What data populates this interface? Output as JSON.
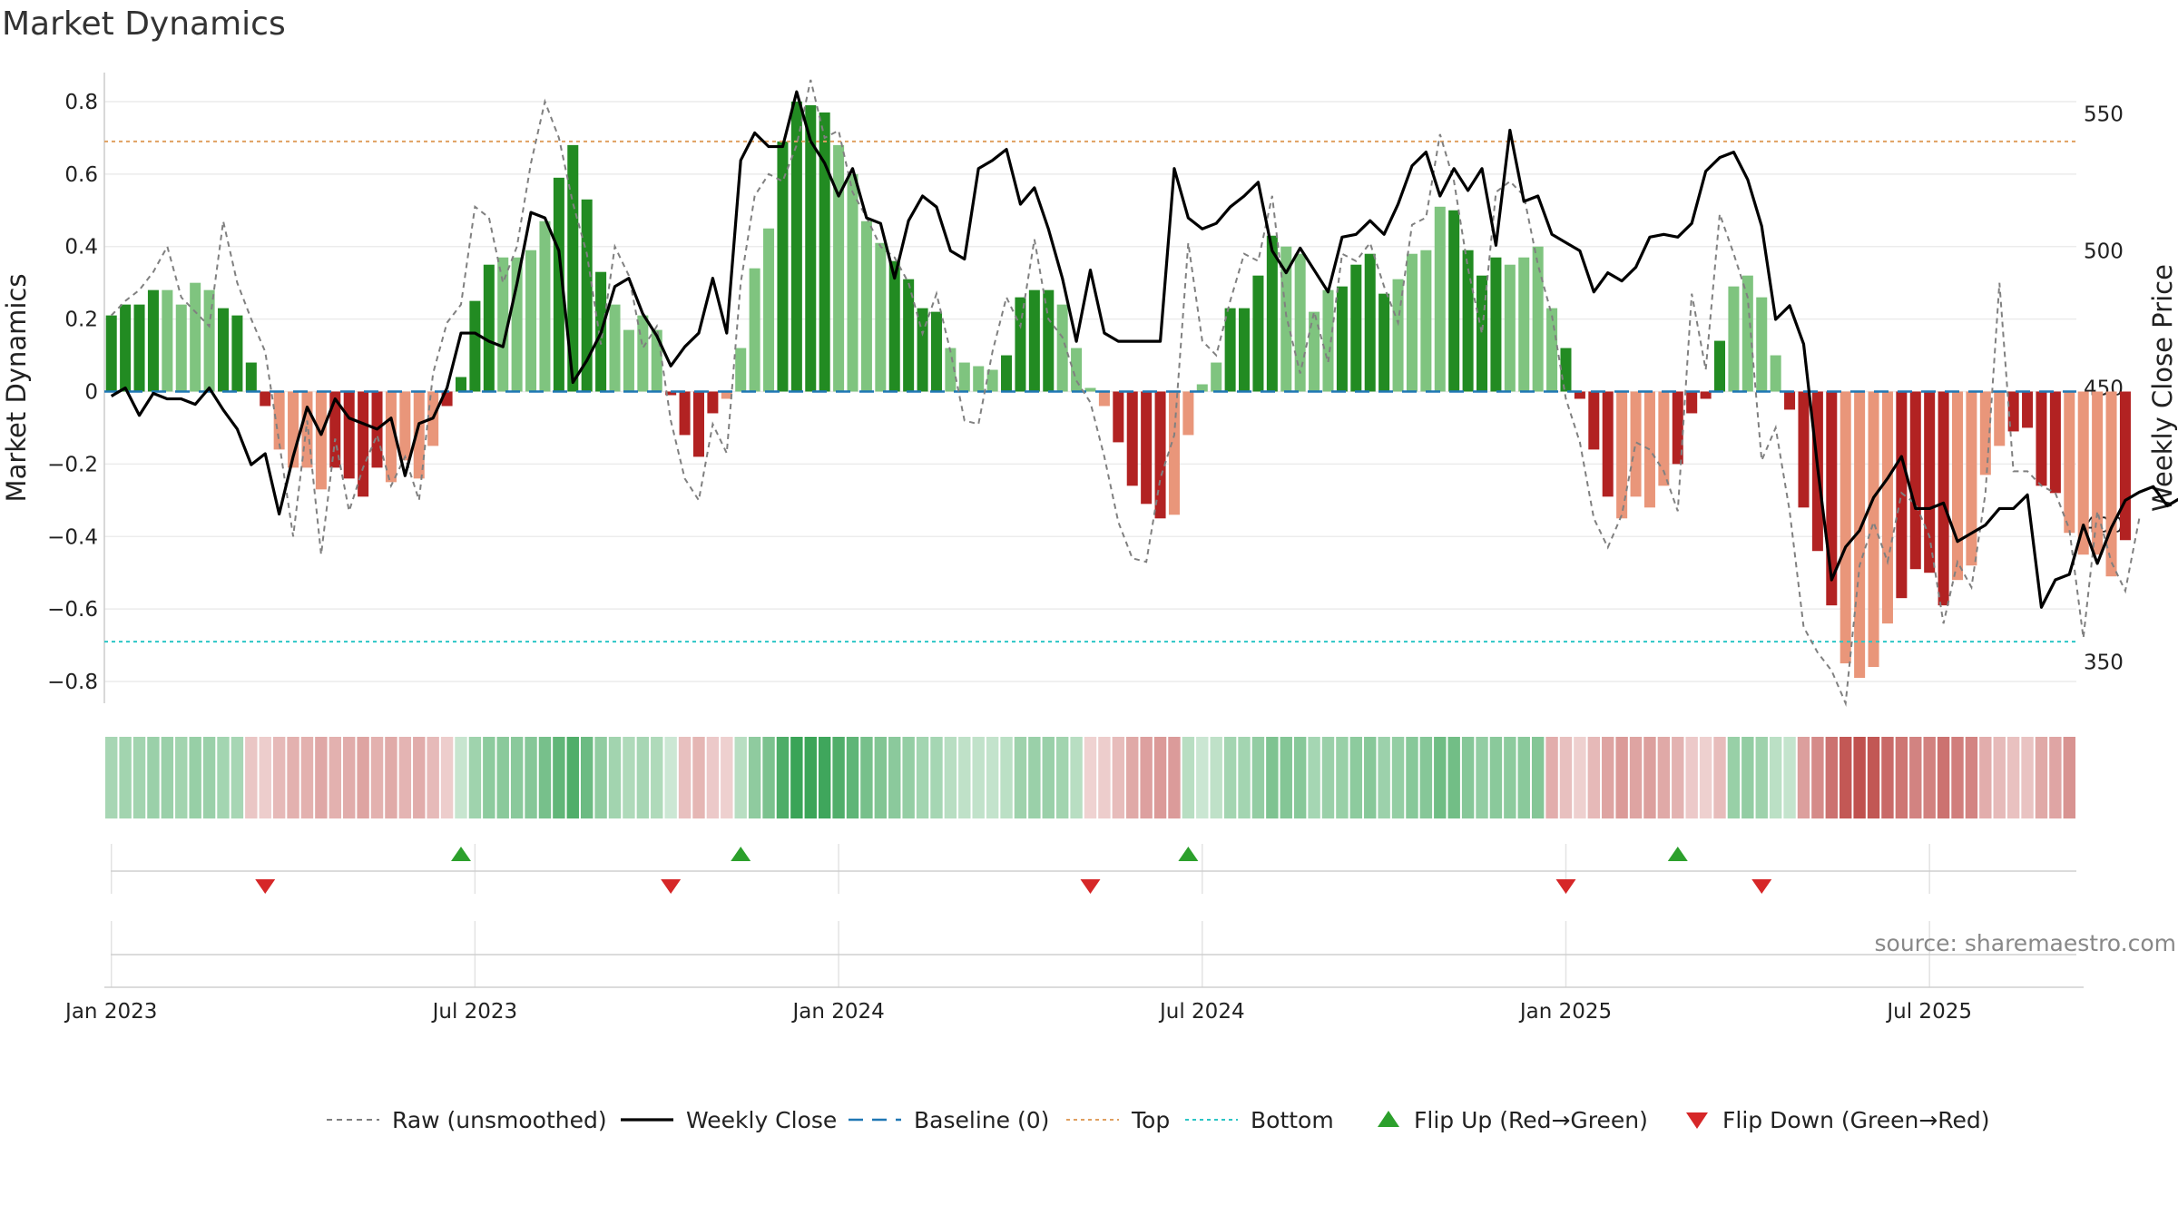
{
  "title": "Market Dynamics",
  "source": "source: sharemaestro.com",
  "colors": {
    "strong_green": "#228B22",
    "light_green": "#7FC47F",
    "strong_red": "#B22222",
    "light_red": "#E9967A",
    "close": "#000000",
    "raw": "#808080",
    "baseline": "#1f77b4",
    "top": "#E0A060",
    "bottom": "#2CC5C5",
    "flip_up": "#2ca02c",
    "flip_down": "#d62728"
  },
  "chart_data": {
    "type": "bar",
    "ylabel": "Market Dynamics",
    "y2label": "Weekly Close Price",
    "ylim": [
      -0.86,
      0.88
    ],
    "y2lim": [
      335,
      565
    ],
    "yticks": [
      "0.8",
      "0.6",
      "0.4",
      "0.2",
      "0",
      "−0.2",
      "−0.4",
      "−0.6",
      "−0.8"
    ],
    "ytick_values": [
      0.8,
      0.6,
      0.4,
      0.2,
      0,
      -0.2,
      -0.4,
      -0.6,
      -0.8
    ],
    "y2ticks": [
      "550",
      "500",
      "450",
      "400",
      "350"
    ],
    "y2tick_values": [
      550,
      500,
      450,
      400,
      350
    ],
    "xticks": [
      "Jan 2023",
      "Jul 2023",
      "Jan 2024",
      "Jul 2024",
      "Jan 2025",
      "Jul 2025"
    ],
    "xtick_weeks": [
      0,
      26,
      52,
      78,
      104,
      130
    ],
    "week_start": "2022-12-26",
    "n_weeks": 141,
    "top": 0.69,
    "bottom": -0.69,
    "baseline": 0,
    "bars": [
      0.21,
      0.24,
      0.24,
      0.28,
      0.28,
      0.24,
      0.3,
      0.28,
      0.23,
      0.21,
      0.08,
      -0.04,
      -0.16,
      -0.21,
      -0.21,
      -0.27,
      -0.21,
      -0.24,
      -0.29,
      -0.21,
      -0.25,
      -0.19,
      -0.24,
      -0.15,
      -0.04,
      0.04,
      0.25,
      0.35,
      0.37,
      0.37,
      0.39,
      0.47,
      0.59,
      0.68,
      0.53,
      0.33,
      0.24,
      0.17,
      0.21,
      0.17,
      -0.01,
      -0.12,
      -0.18,
      -0.06,
      -0.02,
      0.12,
      0.34,
      0.45,
      0.69,
      0.8,
      0.79,
      0.77,
      0.68,
      0.6,
      0.47,
      0.41,
      0.36,
      0.31,
      0.23,
      0.22,
      0.12,
      0.08,
      0.07,
      0.06,
      0.1,
      0.26,
      0.28,
      0.28,
      0.24,
      0.12,
      0.01,
      -0.04,
      -0.14,
      -0.26,
      -0.31,
      -0.35,
      -0.34,
      -0.12,
      0.02,
      0.08,
      0.23,
      0.23,
      0.32,
      0.43,
      0.4,
      0.38,
      0.22,
      0.28,
      0.29,
      0.35,
      0.38,
      0.27,
      0.31,
      0.38,
      0.39,
      0.51,
      0.5,
      0.39,
      0.32,
      0.37,
      0.35,
      0.37,
      0.4,
      0.23,
      0.12,
      -0.02,
      -0.16,
      -0.29,
      -0.35,
      -0.29,
      -0.32,
      -0.26,
      -0.2,
      -0.06,
      -0.02,
      0.14,
      0.29,
      0.32,
      0.26,
      0.1,
      -0.05,
      -0.32,
      -0.44,
      -0.59,
      -0.75,
      -0.79,
      -0.76,
      -0.64,
      -0.57,
      -0.49,
      -0.5,
      -0.59,
      -0.52,
      -0.48,
      -0.23,
      -0.15,
      -0.11,
      -0.1,
      -0.26,
      -0.28,
      -0.39,
      -0.45,
      -0.45,
      -0.51,
      -0.41
    ],
    "series": [
      {
        "name": "Raw (unsmoothed)",
        "values": [
          0.21,
          0.25,
          0.28,
          0.33,
          0.4,
          0.26,
          0.22,
          0.18,
          0.47,
          0.3,
          0.2,
          0.11,
          -0.14,
          -0.4,
          -0.08,
          -0.45,
          -0.13,
          -0.33,
          -0.21,
          -0.12,
          -0.26,
          -0.18,
          -0.3,
          0.05,
          0.19,
          0.24,
          0.51,
          0.48,
          0.3,
          0.4,
          0.63,
          0.8,
          0.7,
          0.52,
          0.38,
          0.13,
          0.4,
          0.32,
          0.12,
          0.18,
          -0.08,
          -0.24,
          -0.3,
          -0.09,
          -0.17,
          0.3,
          0.54,
          0.6,
          0.58,
          0.68,
          0.86,
          0.7,
          0.72,
          0.55,
          0.48,
          0.4,
          0.37,
          0.3,
          0.16,
          0.27,
          0.11,
          -0.08,
          -0.09,
          0.11,
          0.26,
          0.18,
          0.42,
          0.2,
          0.15,
          0.03,
          -0.03,
          -0.18,
          -0.36,
          -0.46,
          -0.47,
          -0.24,
          -0.12,
          0.41,
          0.14,
          0.1,
          0.25,
          0.38,
          0.36,
          0.54,
          0.21,
          0.05,
          0.22,
          0.08,
          0.38,
          0.36,
          0.41,
          0.29,
          0.19,
          0.46,
          0.48,
          0.71,
          0.58,
          0.34,
          0.16,
          0.55,
          0.58,
          0.54,
          0.35,
          0.21,
          -0.02,
          -0.14,
          -0.35,
          -0.43,
          -0.34,
          -0.14,
          -0.16,
          -0.22,
          -0.33,
          0.27,
          0.06,
          0.49,
          0.38,
          0.26,
          -0.19,
          -0.1,
          -0.33,
          -0.65,
          -0.72,
          -0.77,
          -0.86,
          -0.48,
          -0.36,
          -0.47,
          -0.28,
          -0.31,
          -0.4,
          -0.64,
          -0.47,
          -0.54,
          -0.28,
          0.3,
          -0.22,
          -0.22,
          -0.26,
          -0.28,
          -0.38,
          -0.68,
          -0.33,
          -0.47,
          -0.55,
          -0.35
        ]
      },
      {
        "name": "Weekly Close",
        "values": [
          447,
          450,
          440,
          448,
          446,
          446,
          444,
          450,
          442,
          435,
          422,
          426,
          404,
          425,
          443,
          433,
          446,
          439,
          437,
          435,
          439,
          418,
          437,
          439,
          450,
          470,
          470,
          467,
          465,
          488,
          514,
          512,
          500,
          452,
          460,
          470,
          487,
          490,
          477,
          469,
          458,
          465,
          470,
          490,
          470,
          533,
          543,
          538,
          538,
          558,
          540,
          532,
          520,
          530,
          512,
          510,
          490,
          511,
          520,
          516,
          500,
          497,
          530,
          533,
          537,
          517,
          523,
          508,
          490,
          467,
          493,
          470,
          467,
          467,
          467,
          467,
          530,
          512,
          508,
          510,
          516,
          520,
          525,
          500,
          492,
          501,
          493,
          485,
          505,
          506,
          511,
          506,
          517,
          531,
          536,
          520,
          530,
          522,
          530,
          502,
          544,
          518,
          520,
          506,
          503,
          500,
          485,
          492,
          489,
          494,
          505,
          506,
          505,
          510,
          529,
          534,
          536,
          526,
          509,
          475,
          480,
          466,
          421,
          380,
          392,
          398,
          410,
          417,
          425,
          406,
          406,
          408,
          394,
          397,
          400,
          406,
          406,
          411,
          370,
          380,
          382,
          400,
          386,
          399,
          409,
          412,
          414,
          407,
          410,
          400
        ]
      }
    ],
    "series_overrides": {},
    "strip_sequence": "GGGGGGGGGGRRRRRRRRRRRRRRRGGGGGGGGGGGGGGGGRRRRGGGGGGGGGGGGGGGGGGGGGGGGGRRRRRRRGGGGGGGGGGGGGGGGGGGGGGGGGGRRRRRRRRRRRRRGGGGGRRRRRRRRRRRRRRRRRRRRRRRRRR",
    "flip_up_weeks": [
      25,
      45,
      77,
      112
    ],
    "flip_down_weeks": [
      11,
      40,
      70,
      104,
      118
    ]
  },
  "legend": [
    {
      "label": "Raw (unsmoothed)",
      "icon": "dashed-gray-line"
    },
    {
      "label": "Weekly Close",
      "icon": "black-line"
    },
    {
      "label": "Baseline (0)",
      "icon": "dashed-blue-line"
    },
    {
      "label": "Top",
      "icon": "dotted-orange-line"
    },
    {
      "label": "Bottom",
      "icon": "dotted-cyan-line"
    },
    {
      "label": "Flip Up (Red→Green)",
      "icon": "green-up-triangle"
    },
    {
      "label": "Flip Down (Green→Red)",
      "icon": "red-down-triangle"
    }
  ]
}
